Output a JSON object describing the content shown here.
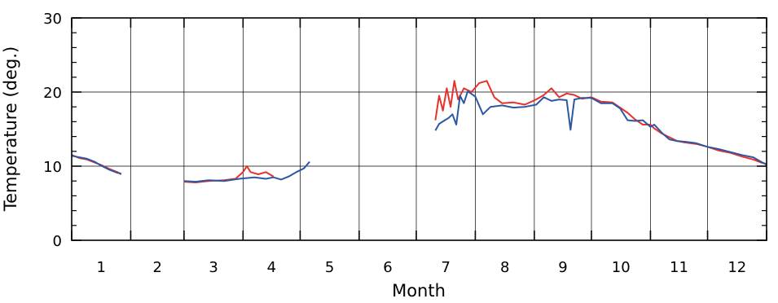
{
  "chart_data": {
    "type": "line",
    "xlabel": "Month",
    "ylabel": "Temperature (deg.)",
    "xlim": [
      0,
      365
    ],
    "ylim": [
      0,
      30
    ],
    "grid": true,
    "legend": "none",
    "month_labels": [
      "1",
      "2",
      "3",
      "4",
      "5",
      "6",
      "7",
      "8",
      "9",
      "10",
      "11",
      "12"
    ],
    "y_ticks": [
      0,
      10,
      20,
      30
    ],
    "y_tick_labels": [
      "0",
      "10",
      "20",
      "30"
    ],
    "series": [
      {
        "color": "#e8312a",
        "segments": [
          [
            [
              0,
              11.5
            ],
            [
              4,
              11.1
            ],
            [
              8,
              10.9
            ],
            [
              12,
              10.5
            ],
            [
              16,
              10.1
            ],
            [
              20,
              9.6
            ],
            [
              24,
              9.2
            ],
            [
              26,
              8.9
            ]
          ],
          [
            [
              59,
              7.9
            ],
            [
              65,
              7.8
            ],
            [
              72,
              8.0
            ],
            [
              80,
              8.1
            ],
            [
              86,
              8.3
            ],
            [
              90,
              9.2
            ],
            [
              92,
              10.0
            ],
            [
              94,
              9.2
            ],
            [
              98,
              8.9
            ],
            [
              102,
              9.2
            ],
            [
              106,
              8.6
            ]
          ],
          [
            [
              191,
              16.2
            ],
            [
              193,
              19.5
            ],
            [
              195,
              17.5
            ],
            [
              197,
              20.5
            ],
            [
              199,
              18.0
            ],
            [
              201,
              21.5
            ],
            [
              203,
              19.0
            ],
            [
              206,
              20.5
            ],
            [
              210,
              20.0
            ],
            [
              214,
              21.2
            ],
            [
              218,
              21.5
            ],
            [
              222,
              19.3
            ],
            [
              226,
              18.5
            ],
            [
              232,
              18.6
            ],
            [
              238,
              18.3
            ],
            [
              244,
              19.0
            ],
            [
              248,
              19.6
            ],
            [
              252,
              20.5
            ],
            [
              256,
              19.3
            ],
            [
              260,
              19.8
            ],
            [
              264,
              19.6
            ],
            [
              268,
              19.1
            ],
            [
              273,
              19.3
            ],
            [
              278,
              18.7
            ],
            [
              284,
              18.6
            ],
            [
              288,
              17.9
            ],
            [
              292,
              17.2
            ],
            [
              296,
              16.3
            ],
            [
              300,
              15.6
            ],
            [
              304,
              15.6
            ],
            [
              306,
              15.1
            ],
            [
              310,
              14.4
            ],
            [
              314,
              13.9
            ],
            [
              318,
              13.4
            ],
            [
              322,
              13.2
            ],
            [
              328,
              13.0
            ],
            [
              334,
              12.6
            ],
            [
              340,
              12.1
            ],
            [
              346,
              11.8
            ],
            [
              352,
              11.3
            ],
            [
              358,
              10.9
            ],
            [
              362,
              10.5
            ],
            [
              365,
              10.3
            ]
          ]
        ]
      },
      {
        "color": "#2b57a4",
        "segments": [
          [
            [
              0,
              11.4
            ],
            [
              4,
              11.2
            ],
            [
              8,
              11.0
            ],
            [
              12,
              10.6
            ],
            [
              16,
              10.0
            ],
            [
              20,
              9.5
            ],
            [
              24,
              9.1
            ],
            [
              26,
              9.0
            ]
          ],
          [
            [
              59,
              8.0
            ],
            [
              65,
              7.9
            ],
            [
              72,
              8.1
            ],
            [
              80,
              8.0
            ],
            [
              88,
              8.3
            ],
            [
              96,
              8.5
            ],
            [
              102,
              8.3
            ],
            [
              106,
              8.5
            ],
            [
              110,
              8.2
            ],
            [
              114,
              8.6
            ],
            [
              118,
              9.2
            ],
            [
              122,
              9.7
            ],
            [
              125,
              10.6
            ]
          ],
          [
            [
              191,
              14.8
            ],
            [
              193,
              15.7
            ],
            [
              196,
              16.2
            ],
            [
              198,
              16.5
            ],
            [
              200,
              17.0
            ],
            [
              202,
              15.6
            ],
            [
              204,
              19.5
            ],
            [
              206,
              18.5
            ],
            [
              208,
              20.1
            ],
            [
              212,
              19.4
            ],
            [
              216,
              17.0
            ],
            [
              220,
              18.0
            ],
            [
              226,
              18.2
            ],
            [
              232,
              17.9
            ],
            [
              238,
              18.0
            ],
            [
              244,
              18.3
            ],
            [
              248,
              19.3
            ],
            [
              252,
              18.8
            ],
            [
              256,
              19.0
            ],
            [
              260,
              18.9
            ],
            [
              262,
              14.9
            ],
            [
              264,
              19.0
            ],
            [
              268,
              19.2
            ],
            [
              273,
              19.2
            ],
            [
              278,
              18.5
            ],
            [
              284,
              18.5
            ],
            [
              288,
              17.8
            ],
            [
              292,
              16.2
            ],
            [
              296,
              16.1
            ],
            [
              300,
              16.2
            ],
            [
              304,
              15.3
            ],
            [
              306,
              15.6
            ],
            [
              310,
              14.5
            ],
            [
              314,
              13.6
            ],
            [
              318,
              13.4
            ],
            [
              322,
              13.3
            ],
            [
              328,
              13.1
            ],
            [
              334,
              12.6
            ],
            [
              340,
              12.3
            ],
            [
              346,
              11.9
            ],
            [
              352,
              11.5
            ],
            [
              358,
              11.2
            ],
            [
              362,
              10.6
            ],
            [
              365,
              10.2
            ]
          ]
        ]
      }
    ]
  }
}
